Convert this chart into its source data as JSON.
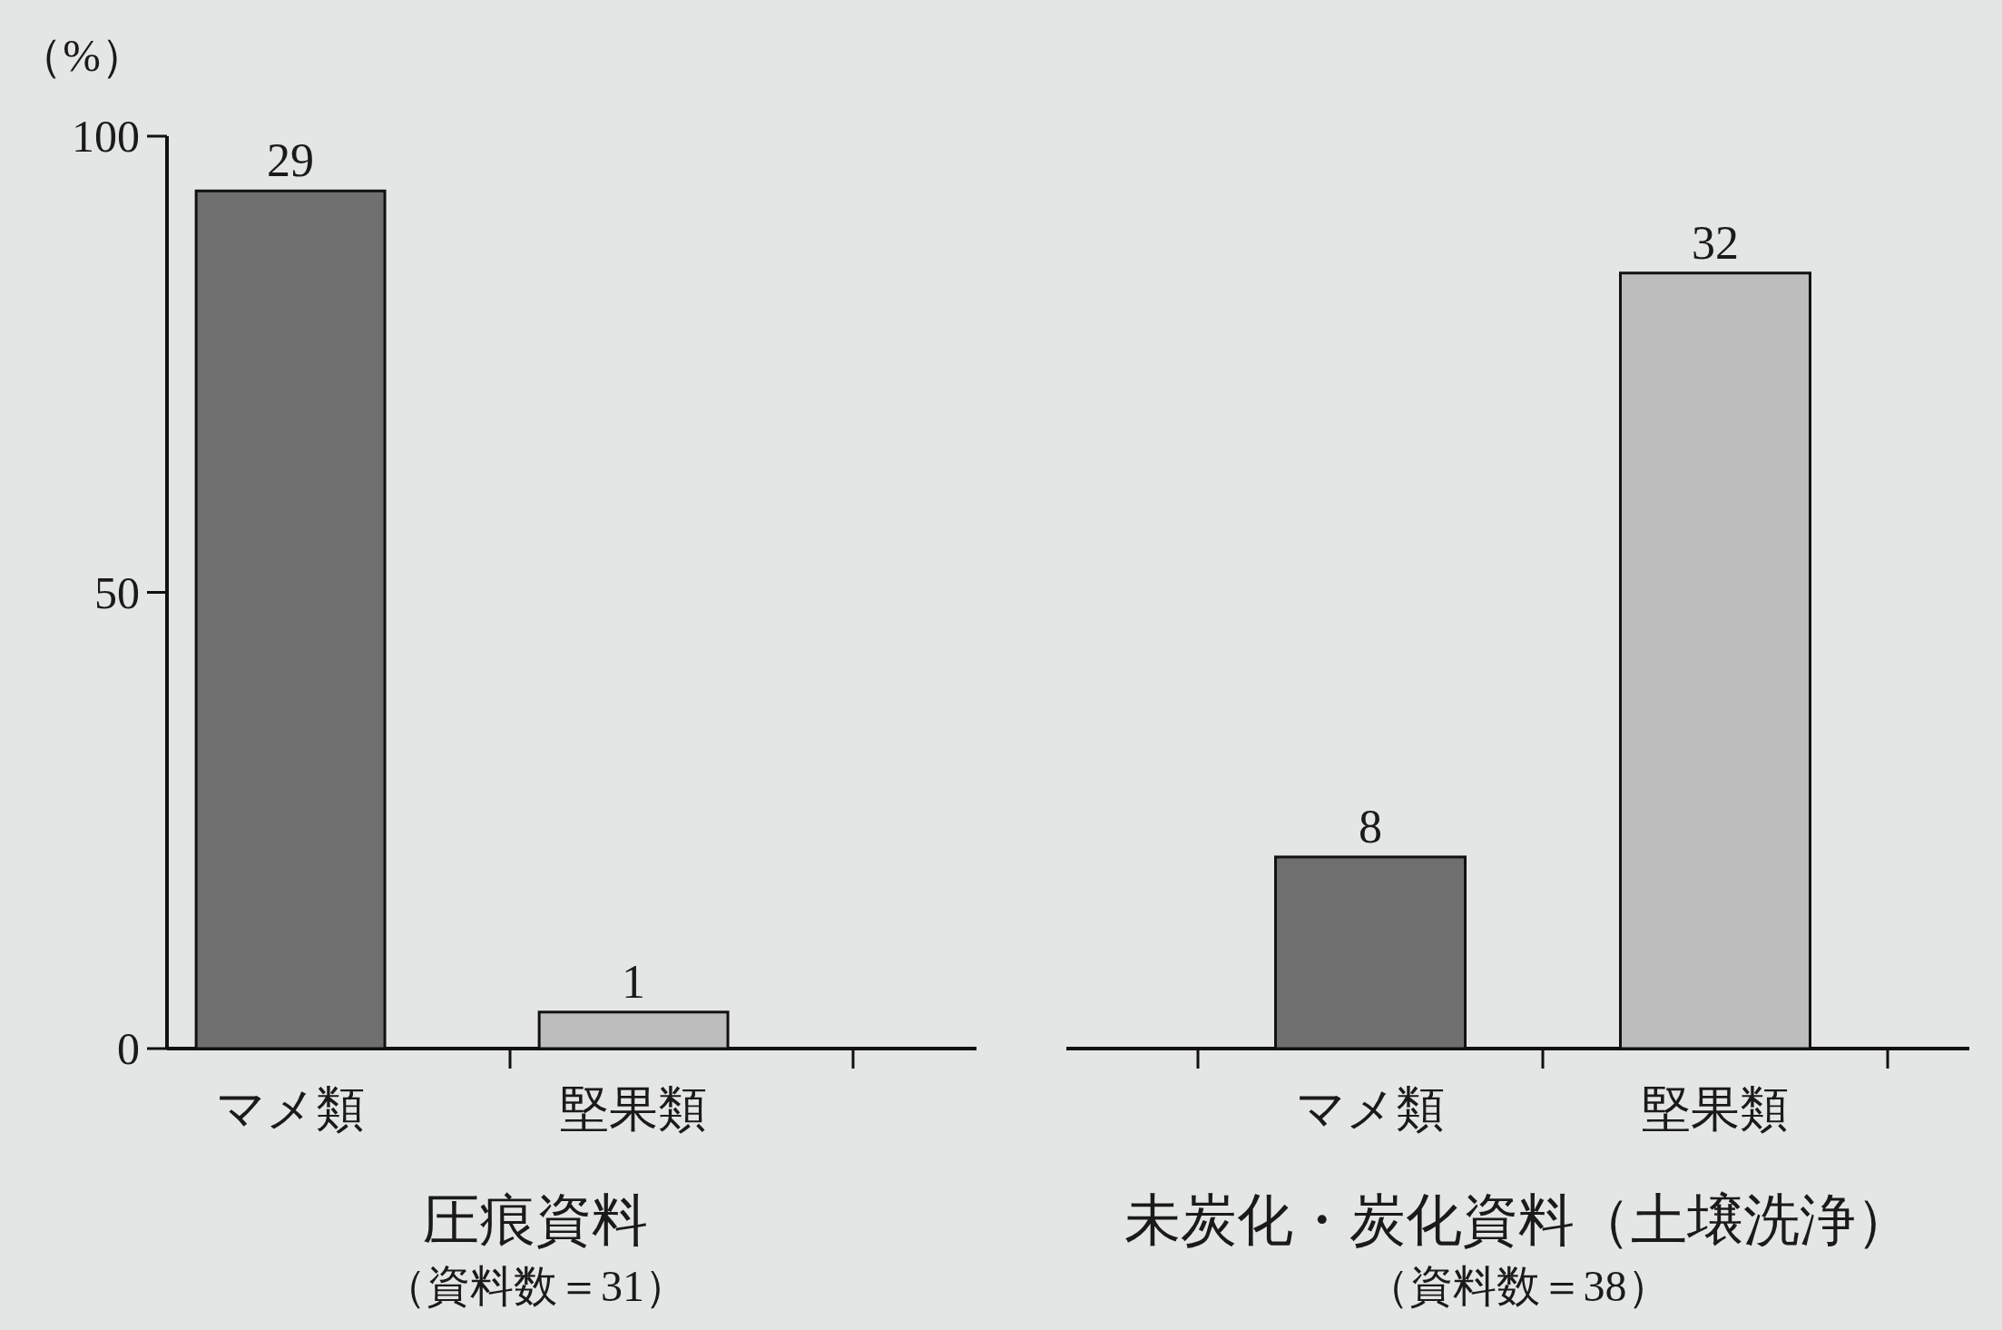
{
  "chart_data": [
    {
      "type": "bar",
      "title": "圧痕資料",
      "subtitle": "（資料数＝31）",
      "ylabel": "（%）",
      "categories": [
        "マメ類",
        "堅果類"
      ],
      "values": [
        94,
        4
      ],
      "colors": [
        "#6f6f6f",
        "#bdbdbd"
      ],
      "ylim": [
        0,
        100
      ],
      "yticks": [
        0,
        50,
        100
      ],
      "annotations": [
        {
          "text": "29",
          "x": "マメ類",
          "y": 94
        },
        {
          "text": "1",
          "x": "堅果類",
          "y": 4
        }
      ]
    },
    {
      "type": "bar",
      "title": "未炭化・炭化資料（土壌洗浄）",
      "subtitle": "（資料数＝38）",
      "categories": [
        "マメ類",
        "堅果類"
      ],
      "values": [
        21,
        85
      ],
      "colors": [
        "#6f6f6f",
        "#bdbdbd"
      ],
      "ylim": [
        0,
        100
      ],
      "tick_labels": "x",
      "annotations": [
        {
          "text": "8",
          "x": "マメ類",
          "y": 21
        },
        {
          "text": "32",
          "x": "堅果類",
          "y": 85
        }
      ]
    }
  ]
}
